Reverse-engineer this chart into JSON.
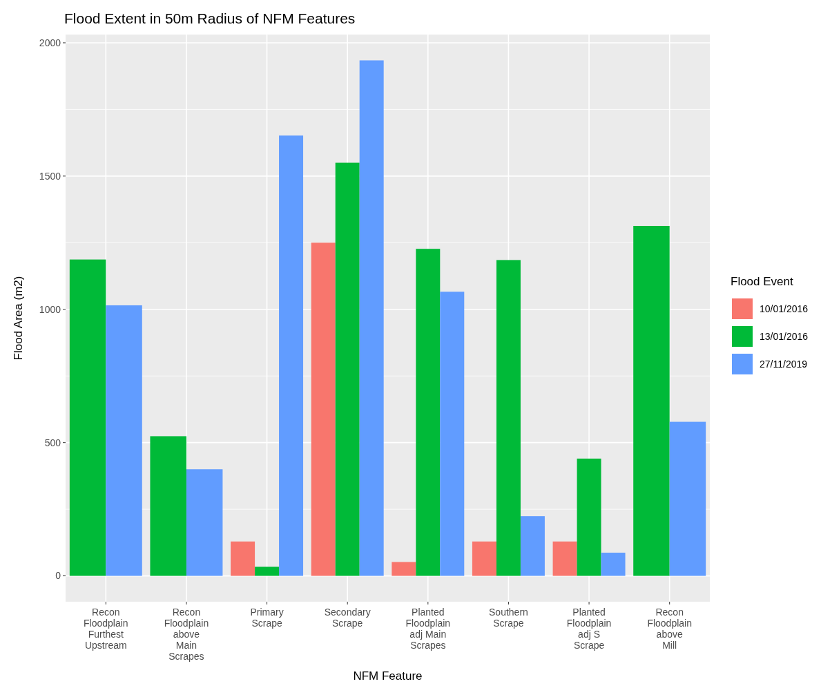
{
  "chart_data": {
    "type": "bar",
    "title": "Flood Extent in 50m Radius of NFM Features",
    "xlabel": "NFM Feature",
    "ylabel": "Flood Area (m2)",
    "legend_title": "Flood Event",
    "categories": [
      "Recon\nFloodplain\nFurthest\nUpstream",
      "Recon\nFloodplain\nabove\nMain\nScrapes",
      "Primary\nScrape",
      "Secondary\nScrape",
      "Planted\nFloodplain\nadj Main\nScrapes",
      "Southern\nScrape",
      "Planted\nFloodplain\nadj S\nScrape",
      "Recon\nFloodplain\nabove\nMill"
    ],
    "series": [
      {
        "name": "10/01/2016",
        "color": "#f8766d",
        "values": [
          null,
          null,
          129,
          1250,
          52,
          129,
          129,
          null
        ]
      },
      {
        "name": "13/01/2016",
        "color": "#00ba38",
        "values": [
          1187,
          524,
          34,
          1550,
          1227,
          1185,
          440,
          1313
        ]
      },
      {
        "name": "27/11/2019",
        "color": "#619cff",
        "values": [
          1015,
          400,
          1652,
          1934,
          1066,
          224,
          87,
          578
        ]
      }
    ],
    "ylim": [
      -97,
      2031
    ],
    "yticks": [
      0,
      500,
      1000,
      1500,
      2000
    ],
    "grid": true,
    "legend": "right"
  }
}
